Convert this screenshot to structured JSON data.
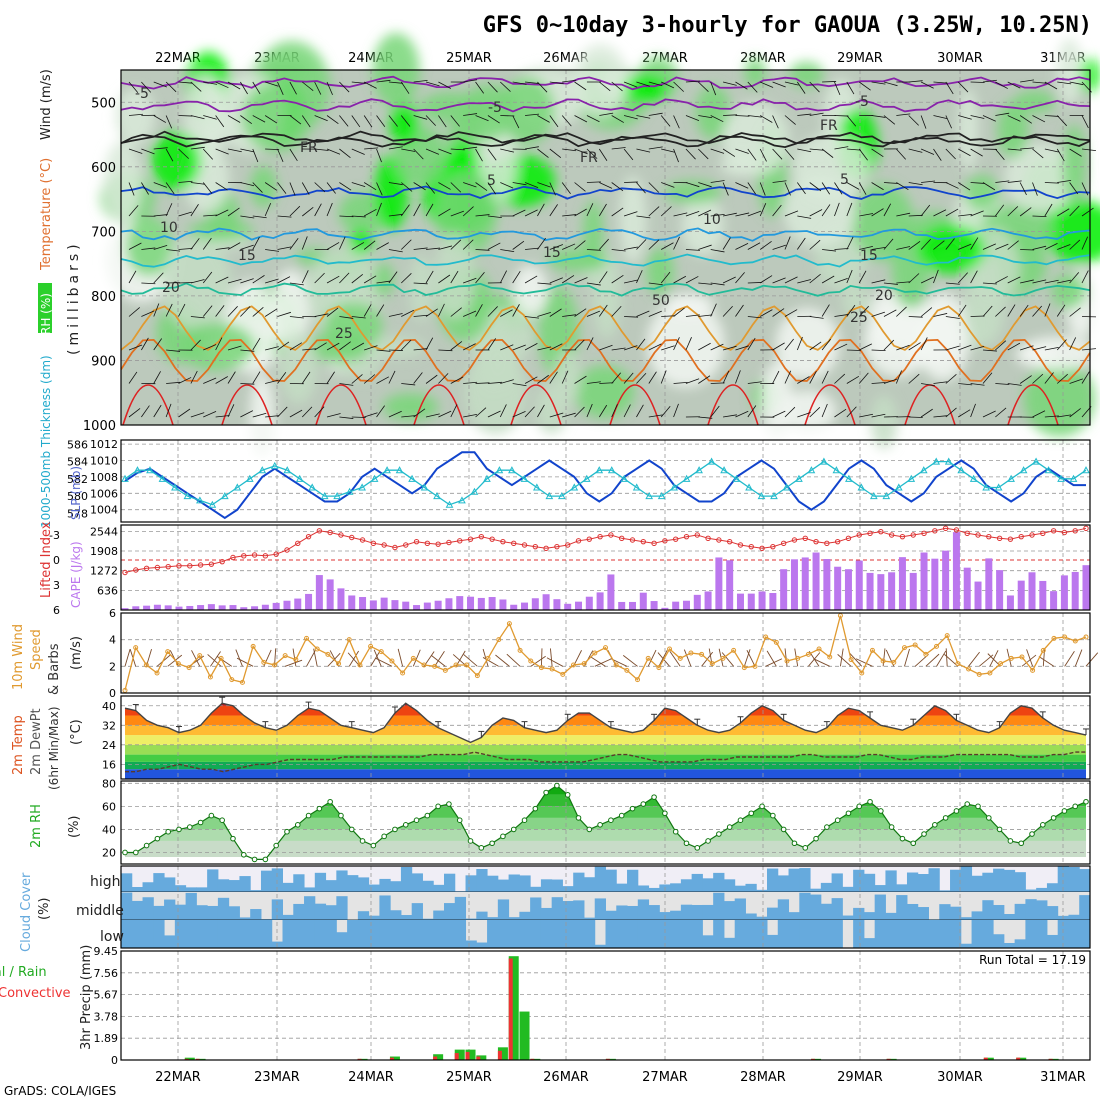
{
  "title": "GFS 0~10day 3-hourly for GAOUA (3.25W, 10.25N)",
  "footer": "GrADS: COLA/IGES",
  "dates": [
    "22MAR",
    "23MAR",
    "24MAR",
    "25MAR",
    "26MAR",
    "27MAR",
    "28MAR",
    "29MAR",
    "30MAR",
    "31MAR"
  ],
  "colors": {
    "rh_dark": "#00ee00",
    "rh_mid": "#77d677",
    "rh_light": "#c4ddc4",
    "rh_gray": "#bcc9bc",
    "slp": "#1144cc",
    "thickness": "#22bbcc",
    "lifted": "#dd3333",
    "cape": "#bb77ee",
    "wind": "#e09a30",
    "temp": "#444444",
    "rh2m": "#22bb22",
    "cloud": "#66aadd",
    "rain_total": "#22bb22",
    "rain_conv": "#ee3333"
  },
  "labels": {
    "upper_left": [
      "RH (%)",
      "Temperature (°C)",
      "Wind (m/s)"
    ],
    "upper_units": "(millibars)",
    "slp_left": "1000-500mb Thickness (dm)",
    "slp_right": "SLP (mb)",
    "cape_left": "Lifted Index",
    "cape_right": "CAPE (J/kg)",
    "wind10": [
      "10m Wind",
      "Speed",
      "& Barbs",
      "(m/s)"
    ],
    "temp2m": [
      "2m Temp",
      "2m DewPt",
      "(6hr Min/Max)",
      "(°C)"
    ],
    "rh2m": [
      "2m RH",
      "(%)"
    ],
    "cloud": [
      "Cloud Cover",
      "(%)"
    ],
    "cloud_levels": [
      "high",
      "middle",
      "low"
    ],
    "precip": [
      "Total / Rain",
      "Convective",
      "3hr Precip (mm)"
    ],
    "run_total": "Run Total = 17.19"
  },
  "chart_data": [
    {
      "type": "heatmap",
      "name": "upper-air",
      "ylabel": "(millibars)",
      "yticks": [
        500,
        600,
        700,
        800,
        900,
        1000
      ],
      "ylim": [
        1000,
        450
      ],
      "isotherm_labels": [
        "-5",
        "-5",
        "FR",
        "FR",
        "FR",
        "-5",
        "5",
        "5",
        "10",
        "10",
        "15",
        "15",
        "15",
        "20",
        "20",
        "25",
        "25",
        "50"
      ]
    },
    {
      "type": "line",
      "name": "slp-thickness",
      "y_left_ticks": [
        578,
        580,
        582,
        584,
        586
      ],
      "y_right_ticks": [
        1004,
        1006,
        1008,
        1010,
        1012
      ],
      "series": [
        {
          "name": "SLP",
          "values": [
            1007.5,
            1008.5,
            1009,
            1008,
            1007,
            1006,
            1005,
            1004,
            1003,
            1004,
            1006,
            1008,
            1009,
            1008,
            1007,
            1006,
            1005,
            1005,
            1006,
            1008,
            1009,
            1008,
            1007,
            1006,
            1007,
            1009,
            1010,
            1011,
            1011,
            1009,
            1008,
            1007,
            1008,
            1009,
            1010,
            1009,
            1008,
            1006,
            1005,
            1006,
            1008,
            1009,
            1010,
            1009,
            1007,
            1006,
            1005,
            1005,
            1006,
            1008,
            1009,
            1010,
            1009,
            1007,
            1005,
            1004,
            1005,
            1007,
            1009,
            1010,
            1009,
            1007,
            1006,
            1005,
            1006,
            1008,
            1009,
            1010,
            1009,
            1007,
            1006,
            1005,
            1006,
            1008,
            1009,
            1008,
            1007,
            1007
          ]
        },
        {
          "name": "Thickness",
          "values": [
            582,
            583,
            583,
            582,
            581,
            580,
            579.5,
            579,
            580,
            581,
            582,
            583,
            583.5,
            583,
            582,
            581,
            580,
            580,
            580.5,
            581,
            582,
            583,
            583,
            582,
            581,
            580,
            579,
            579.5,
            580.5,
            582,
            583,
            583,
            582,
            581,
            580,
            580,
            581,
            582,
            583,
            583,
            582,
            581,
            580,
            580,
            581,
            582,
            583,
            584,
            583,
            582,
            581,
            580,
            580,
            581,
            582,
            583,
            584,
            583,
            582,
            581,
            580,
            580,
            581,
            582,
            583,
            584,
            584,
            583,
            582,
            581,
            581,
            582,
            583,
            584,
            583,
            582,
            582,
            583
          ]
        }
      ]
    },
    {
      "type": "bar",
      "name": "cape-lifted",
      "y_left_ticks": [
        6,
        3,
        0,
        -3
      ],
      "y_right_ticks": [
        636,
        1272,
        1908,
        2544
      ],
      "series": [
        {
          "name": "CAPE",
          "values": [
            60,
            120,
            140,
            170,
            150,
            110,
            130,
            160,
            190,
            150,
            160,
            90,
            120,
            170,
            230,
            300,
            370,
            520,
            1130,
            990,
            700,
            470,
            420,
            310,
            400,
            320,
            270,
            160,
            240,
            300,
            380,
            450,
            430,
            390,
            420,
            340,
            170,
            240,
            380,
            510,
            350,
            200,
            270,
            430,
            570,
            1150,
            260,
            260,
            560,
            290,
            70,
            270,
            300,
            490,
            600,
            1700,
            1610,
            530,
            530,
            600,
            550,
            1320,
            1640,
            1700,
            1860,
            1650,
            1400,
            1320,
            1600,
            1200,
            1160,
            1220,
            1710,
            1200,
            1860,
            1660,
            1920,
            2520,
            1370,
            920,
            1670,
            1290,
            470,
            950,
            1220,
            940,
            610,
            1120,
            1230,
            1450
          ]
        },
        {
          "name": "Lifted Index",
          "values": [
            1.5,
            1.2,
            1,
            0.9,
            0.8,
            0.7,
            0.7,
            0.6,
            0.5,
            0.2,
            -0.3,
            -0.5,
            -0.6,
            -0.5,
            -0.7,
            -1.2,
            -2,
            -2.8,
            -3.5,
            -3.3,
            -3,
            -2.7,
            -2.4,
            -2.0,
            -1.8,
            -1.5,
            -1.8,
            -2.2,
            -2.0,
            -1.9,
            -2.1,
            -2.3,
            -2.5,
            -2.8,
            -2.5,
            -2.2,
            -2.0,
            -1.8,
            -1.6,
            -1.4,
            -1.6,
            -1.8,
            -2.3,
            -2.5,
            -2.8,
            -3.0,
            -2.6,
            -2.4,
            -2.2,
            -2.0,
            -2.3,
            -2.5,
            -2.8,
            -3.0,
            -2.6,
            -2.4,
            -2.2,
            -1.8,
            -1.6,
            -1.4,
            -1.6,
            -2.0,
            -2.4,
            -2.6,
            -2.2,
            -2.0,
            -2.2,
            -2.6,
            -3.0,
            -3.2,
            -3.4,
            -3.0,
            -2.8,
            -3.0,
            -3.2,
            -3.5,
            -3.8,
            -3.6,
            -3.2,
            -3.0,
            -2.8,
            -2.6,
            -2.5,
            -2.8,
            -3.0,
            -3.2,
            -3.5,
            -3.3,
            -3.5,
            -3.8
          ]
        }
      ]
    },
    {
      "type": "line",
      "name": "wind10m",
      "yticks": [
        0,
        2,
        4,
        6
      ],
      "ylim": [
        0,
        6
      ],
      "series": [
        {
          "name": "Speed",
          "values": [
            0.2,
            3.4,
            2.1,
            1.5,
            3.1,
            2.2,
            1.9,
            2.8,
            1.2,
            2.6,
            1.0,
            0.8,
            3.5,
            2.3,
            2.1,
            2.8,
            2.5,
            4.1,
            3.3,
            2.9,
            2.2,
            4.0,
            2.1,
            3.5,
            3.1,
            2.4,
            1.5,
            2.6,
            2.1,
            2.0,
            1.7,
            2.1,
            2.1,
            1.3,
            2.6,
            4.0,
            5.2,
            3.2,
            2.4,
            1.9,
            1.8,
            1.4,
            2.1,
            2.2,
            3.0,
            3.4,
            2.1,
            1.7,
            1.0,
            2.6,
            1.9,
            3.3,
            2.6,
            3.0,
            2.9,
            2.2,
            2.6,
            3.2,
            1.9,
            2.0,
            4.2,
            3.8,
            2.4,
            2.6,
            2.9,
            3.3,
            2.7,
            5.8,
            2.5,
            1.5,
            3.2,
            2.4,
            2.3,
            3.4,
            3.6,
            2.9,
            3.5,
            4.3,
            2.2,
            1.8,
            1.4,
            1.5,
            2.2,
            2.6,
            2.7,
            1.7,
            3.2,
            4.1,
            4.2,
            3.9,
            4.2
          ]
        }
      ]
    },
    {
      "type": "area",
      "name": "temp2m",
      "yticks": [
        16,
        24,
        32,
        40
      ],
      "ylim": [
        10,
        44
      ],
      "series": [
        {
          "name": "Temp",
          "values": [
            39,
            38,
            34,
            32,
            31,
            29,
            30,
            32,
            37,
            41,
            40,
            36,
            33,
            31,
            30,
            32,
            36,
            39,
            38,
            35,
            32,
            31,
            30,
            29,
            31,
            37,
            41,
            38,
            34,
            31,
            29,
            27,
            25,
            27,
            32,
            35,
            34,
            31,
            30,
            29,
            30,
            34,
            37,
            37,
            34,
            31,
            30,
            29,
            30,
            34,
            39,
            38,
            35,
            32,
            30,
            29,
            30,
            33,
            37,
            40,
            38,
            34,
            32,
            30,
            29,
            31,
            36,
            39,
            38,
            35,
            32,
            31,
            30,
            32,
            36,
            40,
            38,
            34,
            32,
            30,
            29,
            31,
            37,
            40,
            39,
            35,
            32,
            30,
            29,
            28
          ]
        },
        {
          "name": "DewPt",
          "values": [
            13,
            13,
            14,
            14,
            15,
            16,
            15,
            14,
            14,
            13,
            14,
            15,
            16,
            16,
            17,
            18,
            18,
            18,
            18,
            18,
            19,
            19,
            19,
            19,
            19,
            19,
            19,
            19,
            20,
            20,
            20,
            20,
            21,
            20,
            19,
            18,
            18,
            18,
            17,
            17,
            17,
            17,
            17,
            18,
            19,
            20,
            20,
            19,
            18,
            17,
            17,
            17,
            17,
            18,
            18,
            18,
            19,
            19,
            19,
            19,
            19,
            19,
            20,
            20,
            19,
            19,
            19,
            19,
            20,
            20,
            19,
            18,
            18,
            19,
            19,
            19,
            20,
            20,
            20,
            20,
            20,
            20,
            19,
            19,
            19,
            20,
            20,
            21,
            21
          ]
        }
      ]
    },
    {
      "type": "area",
      "name": "rh2m",
      "yticks": [
        20,
        40,
        60,
        80
      ],
      "ylim": [
        10,
        82
      ],
      "series": [
        {
          "name": "RH",
          "values": [
            20,
            20,
            26,
            32,
            38,
            40,
            42,
            46,
            52,
            48,
            32,
            18,
            14,
            14,
            26,
            38,
            44,
            52,
            58,
            64,
            52,
            40,
            30,
            26,
            34,
            40,
            44,
            48,
            52,
            60,
            62,
            48,
            30,
            24,
            28,
            34,
            40,
            48,
            58,
            72,
            78,
            70,
            50,
            40,
            44,
            48,
            52,
            58,
            62,
            68,
            54,
            38,
            28,
            24,
            30,
            36,
            42,
            48,
            54,
            60,
            52,
            40,
            28,
            24,
            32,
            42,
            48,
            54,
            60,
            64,
            56,
            42,
            32,
            28,
            36,
            44,
            50,
            56,
            62,
            60,
            50,
            40,
            30,
            28,
            36,
            44,
            50,
            56,
            60,
            64
          ]
        }
      ]
    },
    {
      "type": "bar",
      "name": "precip",
      "yticks": [
        0,
        1.89,
        3.78,
        5.67,
        7.56,
        9.45
      ],
      "ylim": [
        0,
        9.45
      ],
      "series": [
        {
          "name": "Total",
          "values": [
            0,
            0,
            0,
            0,
            0,
            0,
            0.2,
            0.1,
            0,
            0,
            0,
            0,
            0,
            0,
            0,
            0,
            0,
            0,
            0,
            0,
            0,
            0,
            0.1,
            0,
            0,
            0.3,
            0,
            0,
            0,
            0.5,
            0,
            0.9,
            0.9,
            0.4,
            0,
            1.1,
            9.0,
            4.2,
            0.1,
            0,
            0,
            0,
            0,
            0,
            0,
            0.1,
            0,
            0,
            0,
            0,
            0,
            0,
            0,
            0,
            0,
            0,
            0,
            0,
            0,
            0,
            0,
            0,
            0,
            0,
            0.1,
            0,
            0,
            0,
            0,
            0,
            0,
            0.1,
            0,
            0,
            0,
            0,
            0,
            0,
            0,
            0,
            0.2,
            0,
            0,
            0.2,
            0,
            0,
            0.1,
            0,
            0,
            0
          ]
        },
        {
          "name": "Convective",
          "values": [
            0,
            0,
            0,
            0,
            0,
            0,
            0.1,
            0.1,
            0,
            0,
            0,
            0,
            0,
            0,
            0,
            0,
            0,
            0,
            0,
            0,
            0,
            0,
            0.1,
            0,
            0,
            0.2,
            0,
            0,
            0,
            0.3,
            0,
            0.6,
            0.7,
            0.3,
            0,
            0.8,
            8.8,
            0,
            0.1,
            0,
            0,
            0,
            0,
            0,
            0,
            0.1,
            0,
            0,
            0,
            0,
            0,
            0,
            0,
            0,
            0,
            0,
            0,
            0,
            0,
            0,
            0,
            0,
            0,
            0,
            0.1,
            0,
            0,
            0,
            0,
            0,
            0,
            0.1,
            0,
            0,
            0,
            0,
            0,
            0,
            0,
            0,
            0.2,
            0,
            0,
            0.2,
            0,
            0,
            0.1,
            0,
            0,
            0
          ]
        }
      ]
    }
  ]
}
